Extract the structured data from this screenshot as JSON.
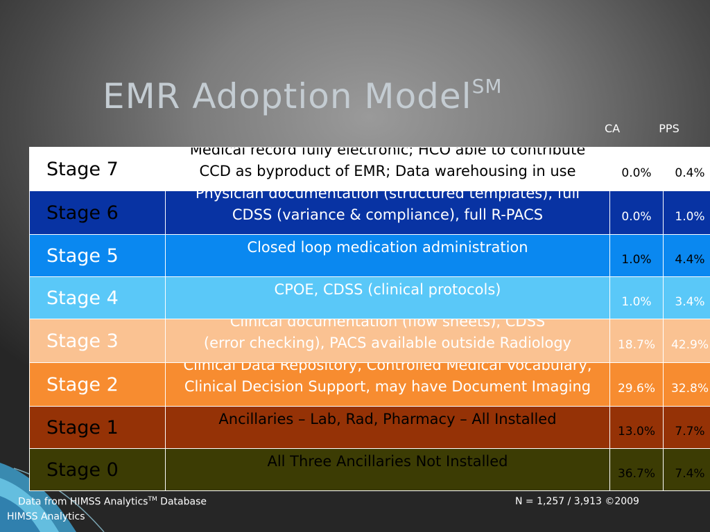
{
  "slide": {
    "title": "EMR Adoption Model",
    "title_sup": "SM"
  },
  "columns": {
    "ca": "CA",
    "pps": "PPS"
  },
  "stages": [
    {
      "stage": "Stage 7",
      "desc1": "Medical record fully electronic; HCO able to contribute",
      "desc2": "CCD as byproduct of EMR; Data warehousing in use",
      "ca": "0.0%",
      "pps": "0.4%",
      "bg": "#ffffff",
      "stage_color": "#000000",
      "desc_color": "#000000",
      "pct_color": "#000000"
    },
    {
      "stage": "Stage 6",
      "desc1": "Physician documentation (structured templates), full",
      "desc2": "CDSS (variance & compliance), full R-PACS",
      "ca": "0.0%",
      "pps": "1.0%",
      "bg": "#0833a3",
      "stage_color": "#000000",
      "desc_color": "#ffffff",
      "pct_color": "#ffffff"
    },
    {
      "stage": "Stage 5",
      "desc1": "Closed loop medication administration",
      "desc2": "",
      "ca": "1.0%",
      "pps": "4.4%",
      "bg": "#0a88f0",
      "stage_color": "#ffffff",
      "desc_color": "#ffffff",
      "pct_color": "#000000"
    },
    {
      "stage": "Stage 4",
      "desc1": "CPOE, CDSS (clinical protocols)",
      "desc2": "",
      "ca": "1.0%",
      "pps": "3.4%",
      "bg": "#5ac8f8",
      "stage_color": "#ffffff",
      "desc_color": "#ffffff",
      "pct_color": "#ffffff"
    },
    {
      "stage": "Stage 3",
      "desc1": "Clinical documentation (flow sheets), CDSS",
      "desc2": "(error checking), PACS available outside Radiology",
      "ca": "18.7%",
      "pps": "42.9%",
      "bg": "#fac292",
      "stage_color": "#ffffff",
      "desc_color": "#ffffff",
      "pct_color": "#ffffff"
    },
    {
      "stage": "Stage 2",
      "desc1": "Clinical Data Repository, Controlled Medical Vocabulary,",
      "desc2": "Clinical Decision Support, may have Document Imaging",
      "ca": "29.6%",
      "pps": "32.8%",
      "bg": "#f78c30",
      "stage_color": "#ffffff",
      "desc_color": "#ffffff",
      "pct_color": "#ffffff"
    },
    {
      "stage": "Stage 1",
      "desc1": "Ancillaries – Lab, Rad, Pharmacy – All Installed",
      "desc2": "",
      "ca": "13.0%",
      "pps": "7.7%",
      "bg": "#953206",
      "stage_color": "#000000",
      "desc_color": "#000000",
      "pct_color": "#000000"
    },
    {
      "stage": "Stage 0",
      "desc1": "All Three Ancillaries Not Installed",
      "desc2": "",
      "ca": "36.7%",
      "pps": "7.4%",
      "bg": "#3c3c04",
      "stage_color": "#000000",
      "desc_color": "#000000",
      "pct_color": "#000000"
    }
  ],
  "footer": {
    "source_pre": "Data from HIMSS Analytics",
    "source_sup": "TM",
    "source_post": " Database",
    "source_line2": "HIMSS Analytics",
    "count": "N = 1,257 / 3,913  ©2009"
  },
  "decor": {
    "swoosh_color": "#4fb4d6"
  }
}
